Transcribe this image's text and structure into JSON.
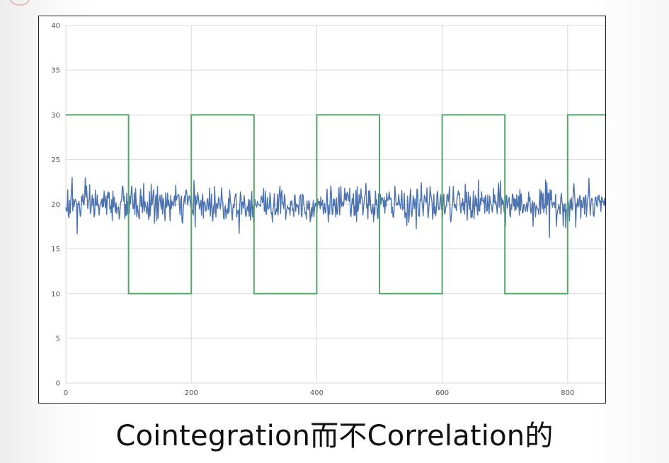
{
  "caption": "Cointegration而不Correlation的",
  "chart_data": {
    "type": "line",
    "title": "",
    "xlabel": "",
    "ylabel": "",
    "xlim": [
      0,
      860
    ],
    "ylim": [
      0,
      40
    ],
    "xticks": [
      0,
      200,
      400,
      600,
      800
    ],
    "yticks": [
      0,
      5,
      10,
      15,
      20,
      25,
      30,
      35,
      40
    ],
    "grid": true,
    "legend": "none",
    "series": [
      {
        "color": "#4c72b0",
        "kind": "noise",
        "mean": 20,
        "std": 1.0,
        "x_range": [
          0,
          860
        ],
        "points": 860,
        "notable": [
          [
            10,
            23
          ],
          [
            18,
            16.7
          ],
          [
            770,
            16.3
          ]
        ]
      },
      {
        "color": "#55a868",
        "kind": "square_wave",
        "x": [
          0,
          100,
          100,
          200,
          200,
          300,
          300,
          400,
          400,
          500,
          500,
          600,
          600,
          700,
          700,
          800,
          800,
          860
        ],
        "y": [
          30,
          30,
          10,
          10,
          30,
          30,
          10,
          10,
          30,
          30,
          10,
          10,
          30,
          30,
          10,
          10,
          30,
          30
        ]
      }
    ]
  }
}
